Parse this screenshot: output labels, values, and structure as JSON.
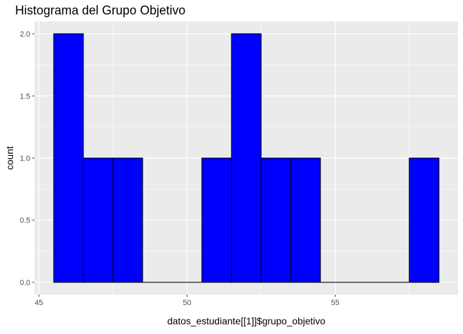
{
  "chart_data": {
    "type": "bar",
    "title": "Histograma del Grupo Objetivo",
    "xlabel": "datos_estudiante[[1]]$grupo_objetivo",
    "ylabel": "count",
    "bins": [
      {
        "start": 45.5,
        "end": 46.5,
        "count": 2
      },
      {
        "start": 46.5,
        "end": 47.5,
        "count": 1
      },
      {
        "start": 47.5,
        "end": 48.5,
        "count": 1
      },
      {
        "start": 48.5,
        "end": 49.5,
        "count": 0
      },
      {
        "start": 49.5,
        "end": 50.5,
        "count": 0
      },
      {
        "start": 50.5,
        "end": 51.5,
        "count": 1
      },
      {
        "start": 51.5,
        "end": 52.5,
        "count": 2
      },
      {
        "start": 52.5,
        "end": 53.5,
        "count": 1
      },
      {
        "start": 53.5,
        "end": 54.5,
        "count": 1
      },
      {
        "start": 54.5,
        "end": 55.5,
        "count": 0
      },
      {
        "start": 55.5,
        "end": 56.5,
        "count": 0
      },
      {
        "start": 56.5,
        "end": 57.5,
        "count": 0
      },
      {
        "start": 57.5,
        "end": 58.5,
        "count": 1
      }
    ],
    "xlim": [
      44.85,
      59.15
    ],
    "ylim": [
      -0.1,
      2.1
    ],
    "x_ticks": [
      45,
      50,
      55
    ],
    "x_tick_labels": [
      "45",
      "50",
      "55"
    ],
    "y_ticks": [
      0,
      0.5,
      1,
      1.5,
      2
    ],
    "y_tick_labels": [
      "0.0",
      "0.5",
      "1.0",
      "1.5",
      "2.0"
    ],
    "grid": true,
    "colors": {
      "bar_fill": "#0000ff",
      "bar_stroke": "#000000",
      "panel_background": "#ebebeb",
      "grid_major": "#ffffff",
      "tick_color": "#333333"
    }
  }
}
